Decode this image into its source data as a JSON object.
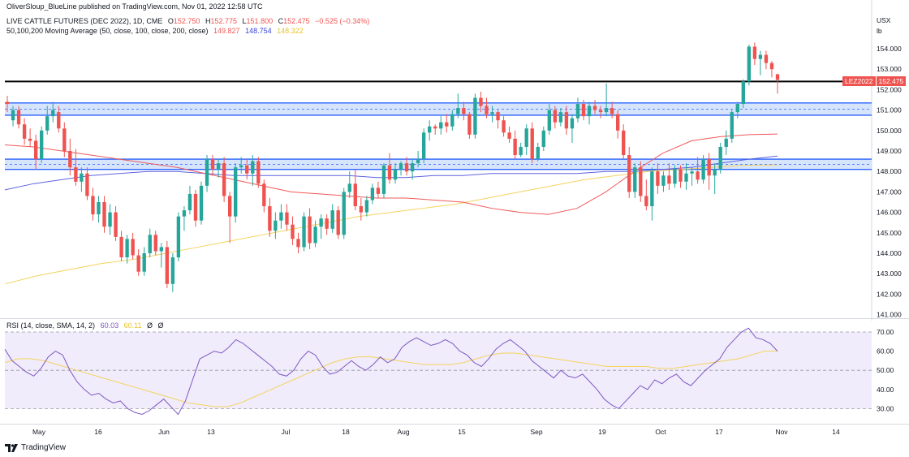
{
  "publisher_line": "OliverSloup_BlueLine published on TradingView.com, Nov 01, 2022 12:58 UTC",
  "legend": {
    "symbol": "LIVE CATTLE FUTURES (DEC 2022), 1D, CME",
    "ohlc": [
      {
        "label": "O",
        "value": "152.750"
      },
      {
        "label": "H",
        "value": "152.775"
      },
      {
        "label": "L",
        "value": "151.800"
      },
      {
        "label": "C",
        "value": "152.475"
      }
    ],
    "change": "−0.525 (−0.34%)",
    "ma_title": "50,100,200 Moving Average (50, close, 100, close, 200, close)",
    "ma_values": [
      "149.827",
      "148.754",
      "148.322"
    ],
    "rsi_title": "RSI (14, close, SMA, 14, 2)",
    "rsi_values": [
      "60.03",
      "60.11",
      "Ø",
      "Ø"
    ]
  },
  "axis": {
    "currency": "USX",
    "unit": "lb"
  },
  "ticker_badge": {
    "label": "LEZ2022",
    "value": "152.475"
  },
  "footer": {
    "brand": "TradingView",
    "logo": "tradingview-logo-icon"
  },
  "colors": {
    "up": "#26a69a",
    "down": "#ef5350",
    "ma50": "#f05a5a",
    "ma100": "#5d62e0",
    "ma200": "#f4d35e",
    "zone_fill": "#c9dcfb",
    "zone_border": "#2962ff",
    "rsi_line": "#7e57c2",
    "rsi_ma": "#f4d35e",
    "rsi_bg": "#f0ecfb"
  },
  "chart_data": [
    {
      "type": "candlestick",
      "title": "LIVE CATTLE FUTURES (DEC 2022), 1D, CME",
      "y_ticks": [
        "154.000",
        "153.000",
        "152.000",
        "151.000",
        "150.000",
        "149.000",
        "148.000",
        "147.000",
        "146.000",
        "145.000",
        "144.000",
        "143.000",
        "142.000",
        "141.000"
      ],
      "ylim": [
        140.6,
        155.0
      ],
      "x_ticks": [
        "May",
        "16",
        "Jun",
        "13",
        "Jul",
        "18",
        "Aug",
        "15",
        "Sep",
        "19",
        "Oct",
        "17",
        "Nov",
        "14"
      ],
      "resistance_line": 152.4,
      "zones": [
        {
          "low": 150.75,
          "high": 151.35,
          "mid": 151.05
        },
        {
          "low": 148.1,
          "high": 148.6,
          "mid": 148.35
        }
      ],
      "candles": [
        [
          151.4,
          151.7,
          150.9,
          151.3
        ],
        [
          150.5,
          151.2,
          150.2,
          151.0
        ],
        [
          151.0,
          151.2,
          150.1,
          150.3
        ],
        [
          150.3,
          150.6,
          149.3,
          149.6
        ],
        [
          149.6,
          150.1,
          149.2,
          149.5
        ],
        [
          149.5,
          149.8,
          148.1,
          148.6
        ],
        [
          148.6,
          150.2,
          148.4,
          150.0
        ],
        [
          150.0,
          151.2,
          149.8,
          150.7
        ],
        [
          150.7,
          151.4,
          150.4,
          151.0
        ],
        [
          150.9,
          151.2,
          149.9,
          150.1
        ],
        [
          150.1,
          150.4,
          148.7,
          149.0
        ],
        [
          149.0,
          149.6,
          147.8,
          148.2
        ],
        [
          148.2,
          149.1,
          147.3,
          147.5
        ],
        [
          147.5,
          148.2,
          147.0,
          147.9
        ],
        [
          147.9,
          148.2,
          146.6,
          146.8
        ],
        [
          146.8,
          147.2,
          145.6,
          145.9
        ],
        [
          145.9,
          146.8,
          145.5,
          146.5
        ],
        [
          146.5,
          146.8,
          145.0,
          145.3
        ],
        [
          145.3,
          146.4,
          144.9,
          146.0
        ],
        [
          146.0,
          146.3,
          144.6,
          144.8
        ],
        [
          144.8,
          145.1,
          143.6,
          143.8
        ],
        [
          143.8,
          144.9,
          143.5,
          144.7
        ],
        [
          144.7,
          145.0,
          143.7,
          143.9
        ],
        [
          143.9,
          144.2,
          142.9,
          143.1
        ],
        [
          143.1,
          144.3,
          142.9,
          144.0
        ],
        [
          144.0,
          145.2,
          143.8,
          144.9
        ],
        [
          144.9,
          145.1,
          143.9,
          144.1
        ],
        [
          144.1,
          144.5,
          143.3,
          144.3
        ],
        [
          144.3,
          144.6,
          142.3,
          142.5
        ],
        [
          142.5,
          144.0,
          142.1,
          143.8
        ],
        [
          143.8,
          146.0,
          143.6,
          145.8
        ],
        [
          145.8,
          146.3,
          145.1,
          146.1
        ],
        [
          146.1,
          147.3,
          145.9,
          146.9
        ],
        [
          146.9,
          147.1,
          145.3,
          145.6
        ],
        [
          145.6,
          147.5,
          145.4,
          147.3
        ],
        [
          147.3,
          148.8,
          147.0,
          148.6
        ],
        [
          148.6,
          148.8,
          147.8,
          148.1
        ],
        [
          148.1,
          148.6,
          147.7,
          148.4
        ],
        [
          148.4,
          148.7,
          146.5,
          146.8
        ],
        [
          146.8,
          147.0,
          144.5,
          145.8
        ],
        [
          145.8,
          148.4,
          145.5,
          148.2
        ],
        [
          148.2,
          148.7,
          147.9,
          148.3
        ],
        [
          148.3,
          148.6,
          147.6,
          147.9
        ],
        [
          147.9,
          148.8,
          147.3,
          148.5
        ],
        [
          148.5,
          148.7,
          147.2,
          147.4
        ],
        [
          147.4,
          147.6,
          146.0,
          146.3
        ],
        [
          146.3,
          146.7,
          144.8,
          145.1
        ],
        [
          145.1,
          146.0,
          144.7,
          145.6
        ],
        [
          145.6,
          146.4,
          145.2,
          146.0
        ],
        [
          146.0,
          146.4,
          145.1,
          145.4
        ],
        [
          145.4,
          145.8,
          144.4,
          144.7
        ],
        [
          144.7,
          145.0,
          144.0,
          144.3
        ],
        [
          144.3,
          146.0,
          144.1,
          145.8
        ],
        [
          145.8,
          146.2,
          144.2,
          144.5
        ],
        [
          144.5,
          145.6,
          144.3,
          145.3
        ],
        [
          145.3,
          145.9,
          144.7,
          145.7
        ],
        [
          145.7,
          145.9,
          144.9,
          145.2
        ],
        [
          145.2,
          146.4,
          145.0,
          146.1
        ],
        [
          146.1,
          146.3,
          144.7,
          144.9
        ],
        [
          144.9,
          147.2,
          144.7,
          147.0
        ],
        [
          147.0,
          148.0,
          146.7,
          147.4
        ],
        [
          147.4,
          148.1,
          146.1,
          146.3
        ],
        [
          146.3,
          146.7,
          145.6,
          146.0
        ],
        [
          146.0,
          146.8,
          145.8,
          146.6
        ],
        [
          146.6,
          147.4,
          146.4,
          147.2
        ],
        [
          147.2,
          147.5,
          146.7,
          146.9
        ],
        [
          146.9,
          148.4,
          146.7,
          148.3
        ],
        [
          148.3,
          148.9,
          147.4,
          147.6
        ],
        [
          147.6,
          148.4,
          147.4,
          148.1
        ],
        [
          148.1,
          148.5,
          147.8,
          148.4
        ],
        [
          148.4,
          148.7,
          147.8,
          148.0
        ],
        [
          148.0,
          148.6,
          147.6,
          148.4
        ],
        [
          148.4,
          149.0,
          148.2,
          148.6
        ],
        [
          148.6,
          150.1,
          148.4,
          149.9
        ],
        [
          149.9,
          150.5,
          149.5,
          150.2
        ],
        [
          150.2,
          150.3,
          149.8,
          150.1
        ],
        [
          150.1,
          150.7,
          149.8,
          150.4
        ],
        [
          150.4,
          150.8,
          149.9,
          150.2
        ],
        [
          150.2,
          151.0,
          150.0,
          150.8
        ],
        [
          150.8,
          151.8,
          150.6,
          151.1
        ],
        [
          151.1,
          151.4,
          150.5,
          150.8
        ],
        [
          150.8,
          150.9,
          149.6,
          149.8
        ],
        [
          149.8,
          151.8,
          149.6,
          151.6
        ],
        [
          151.6,
          151.9,
          150.9,
          151.2
        ],
        [
          151.2,
          151.6,
          150.6,
          150.8
        ],
        [
          150.8,
          151.2,
          150.4,
          150.9
        ],
        [
          150.9,
          151.0,
          150.1,
          150.5
        ],
        [
          150.5,
          150.7,
          149.7,
          149.9
        ],
        [
          149.9,
          150.2,
          149.4,
          149.6
        ],
        [
          149.6,
          150.0,
          148.6,
          148.8
        ],
        [
          148.8,
          149.4,
          148.7,
          149.2
        ],
        [
          149.2,
          150.3,
          148.8,
          150.1
        ],
        [
          150.1,
          150.4,
          148.4,
          148.6
        ],
        [
          148.6,
          149.4,
          148.5,
          149.2
        ],
        [
          149.2,
          150.2,
          149.0,
          150.0
        ],
        [
          150.0,
          151.3,
          149.8,
          151.0
        ],
        [
          151.0,
          151.2,
          150.1,
          150.4
        ],
        [
          150.4,
          151.1,
          150.2,
          150.9
        ],
        [
          150.9,
          151.2,
          149.8,
          150.1
        ],
        [
          150.1,
          150.8,
          149.4,
          150.6
        ],
        [
          150.6,
          151.6,
          150.4,
          151.3
        ],
        [
          151.3,
          151.5,
          150.5,
          150.7
        ],
        [
          150.7,
          151.4,
          150.3,
          151.2
        ],
        [
          151.2,
          151.5,
          150.8,
          151.0
        ],
        [
          151.0,
          151.2,
          150.6,
          150.9
        ],
        [
          150.9,
          152.3,
          150.7,
          151.1
        ],
        [
          151.1,
          151.4,
          150.6,
          150.8
        ],
        [
          150.8,
          151.0,
          149.6,
          150.0
        ],
        [
          150.0,
          150.3,
          148.6,
          148.8
        ],
        [
          148.8,
          149.2,
          146.7,
          147.0
        ],
        [
          147.0,
          148.4,
          146.7,
          148.2
        ],
        [
          148.2,
          148.5,
          146.5,
          146.8
        ],
        [
          146.8,
          147.6,
          146.1,
          146.3
        ],
        [
          146.3,
          148.2,
          145.6,
          148.0
        ],
        [
          148.0,
          148.4,
          146.9,
          147.3
        ],
        [
          147.3,
          148.0,
          147.0,
          147.8
        ],
        [
          147.8,
          148.4,
          147.1,
          147.4
        ],
        [
          147.4,
          148.3,
          147.2,
          148.1
        ],
        [
          148.1,
          148.3,
          147.2,
          147.5
        ],
        [
          147.5,
          148.4,
          147.1,
          147.9
        ],
        [
          147.9,
          148.2,
          147.3,
          148.0
        ],
        [
          148.0,
          148.7,
          147.4,
          147.6
        ],
        [
          147.6,
          148.8,
          147.4,
          148.6
        ],
        [
          148.6,
          148.9,
          147.1,
          147.8
        ],
        [
          147.8,
          148.4,
          146.9,
          148.1
        ],
        [
          148.1,
          149.4,
          147.9,
          149.2
        ],
        [
          149.2,
          150.0,
          148.8,
          149.6
        ],
        [
          149.6,
          151.0,
          149.4,
          150.9
        ],
        [
          150.9,
          151.4,
          150.6,
          151.3
        ],
        [
          151.3,
          152.5,
          151.1,
          152.4
        ],
        [
          152.4,
          154.2,
          152.2,
          154.1
        ],
        [
          154.1,
          154.3,
          153.2,
          153.5
        ],
        [
          153.5,
          153.9,
          152.7,
          153.7
        ],
        [
          153.7,
          153.9,
          153.0,
          153.3
        ],
        [
          153.3,
          153.4,
          152.6,
          153.0
        ],
        [
          152.75,
          152.775,
          151.8,
          152.475
        ]
      ],
      "ma50": [
        149.3,
        149.2,
        149.0,
        148.8,
        148.6,
        148.4,
        148.2,
        147.9,
        147.6,
        147.3,
        147.0,
        146.9,
        146.8,
        146.7,
        146.7,
        146.6,
        146.5,
        146.2,
        146.0,
        145.9,
        146.2,
        147.0,
        148.0,
        148.9,
        149.5,
        149.7,
        149.8,
        149.83
      ],
      "ma100": [
        147.1,
        147.4,
        147.6,
        147.8,
        147.9,
        148.0,
        148.0,
        147.9,
        147.8,
        147.8,
        147.8,
        147.8,
        147.8,
        147.7,
        147.7,
        147.8,
        147.8,
        147.9,
        147.9,
        147.9,
        147.9,
        148.0,
        148.0,
        148.1,
        148.2,
        148.4,
        148.6,
        148.75
      ],
      "ma200": [
        142.5,
        142.9,
        143.2,
        143.5,
        143.7,
        144.0,
        144.3,
        144.6,
        144.9,
        145.2,
        145.5,
        145.8,
        146.0,
        146.2,
        146.4,
        146.7,
        147.0,
        147.3,
        147.6,
        147.8,
        148.0,
        148.1,
        148.2,
        148.3,
        148.32
      ]
    },
    {
      "type": "line",
      "title": "RSI (14, close, SMA, 14, 2)",
      "y_ticks": [
        "70.00",
        "60.00",
        "50.00",
        "40.00",
        "30.00"
      ],
      "ylim": [
        24,
        76
      ],
      "levels": {
        "upper": 70,
        "middle": 50,
        "lower": 30
      },
      "series": [
        {
          "name": "RSI",
          "values": [
            61,
            55,
            52,
            49,
            47,
            51,
            57,
            60,
            58,
            50,
            44,
            40,
            37,
            38,
            35,
            33,
            34,
            30,
            28,
            27,
            29,
            32,
            35,
            31,
            27,
            34,
            45,
            56,
            58,
            60,
            59,
            62,
            66,
            64,
            61,
            58,
            55,
            52,
            48,
            47,
            50,
            56,
            60,
            58,
            52,
            48,
            49,
            52,
            55,
            52,
            50,
            53,
            57,
            54,
            56,
            62,
            65,
            67,
            65,
            63,
            64,
            66,
            64,
            60,
            58,
            54,
            52,
            56,
            61,
            64,
            66,
            63,
            60,
            55,
            52,
            49,
            46,
            50,
            47,
            46,
            48,
            44,
            40,
            35,
            32,
            30,
            34,
            38,
            42,
            40,
            45,
            43,
            46,
            48,
            44,
            42,
            46,
            50,
            53,
            56,
            62,
            66,
            70,
            72,
            67,
            66,
            64,
            60
          ]
        },
        {
          "name": "RSI-based MA",
          "values": [
            54,
            56,
            56,
            55,
            53,
            51,
            49,
            47,
            45,
            43,
            41,
            39,
            37,
            35,
            33,
            32,
            31,
            31,
            33,
            36,
            39,
            42,
            45,
            48,
            51,
            54,
            56,
            57,
            57,
            56,
            55,
            54,
            53,
            53,
            53,
            54,
            56,
            58,
            59,
            59,
            58,
            57,
            56,
            55,
            54,
            53,
            52,
            52,
            52,
            52,
            51,
            51,
            52,
            53,
            54,
            55,
            56,
            58,
            60,
            60.1
          ]
        }
      ]
    }
  ]
}
